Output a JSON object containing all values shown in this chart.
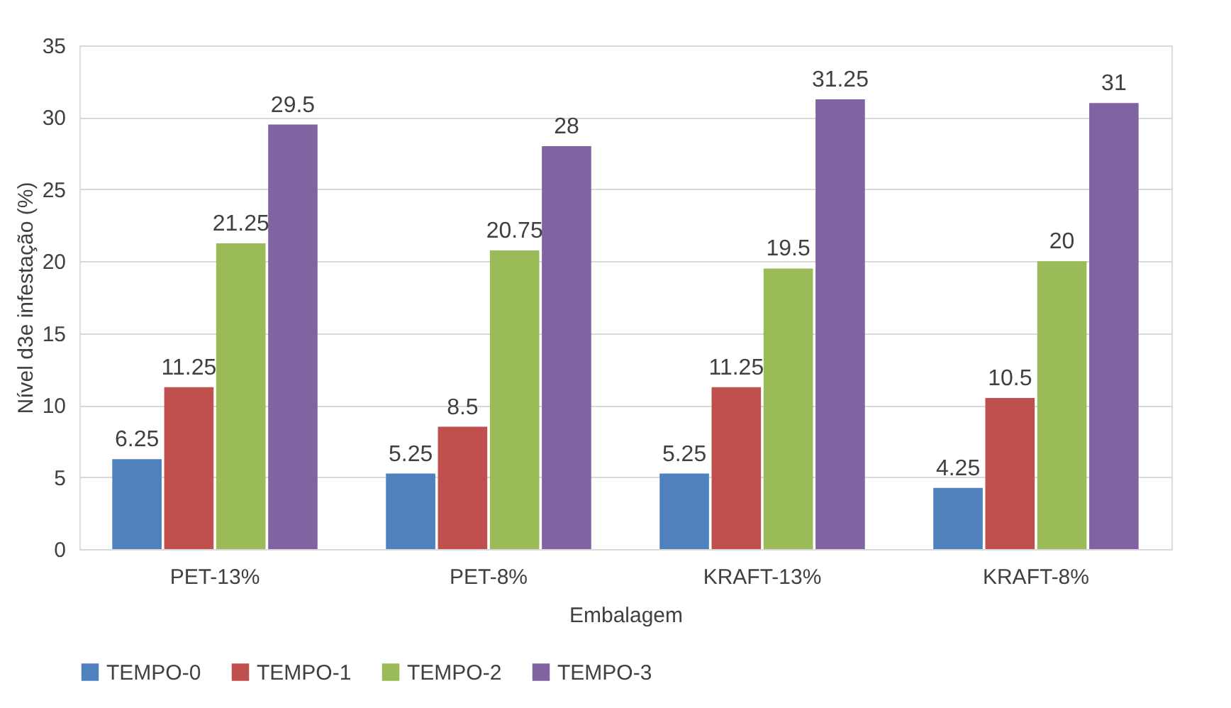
{
  "chart_data": {
    "type": "bar",
    "xlabel": "Embalagem",
    "ylabel": "Nível d3e infestação (%)",
    "categories": [
      "PET-13%",
      "PET-8%",
      "KRAFT-13%",
      "KRAFT-8%"
    ],
    "series": [
      {
        "name": "TEMPO-0",
        "color": "#4f81bd",
        "values": [
          6.25,
          5.25,
          5.25,
          4.25
        ]
      },
      {
        "name": "TEMPO-1",
        "color": "#c0504d",
        "values": [
          11.25,
          8.5,
          11.25,
          10.5
        ]
      },
      {
        "name": "TEMPO-2",
        "color": "#9bbb59",
        "values": [
          21.25,
          20.75,
          19.5,
          20
        ]
      },
      {
        "name": "TEMPO-3",
        "color": "#8064a2",
        "values": [
          29.5,
          28,
          31.25,
          31
        ]
      }
    ],
    "ylim": [
      0,
      35
    ],
    "yticks": [
      0,
      5,
      10,
      15,
      20,
      25,
      30,
      35
    ],
    "grid": "y",
    "legend": "bottom",
    "data_labels": true
  }
}
